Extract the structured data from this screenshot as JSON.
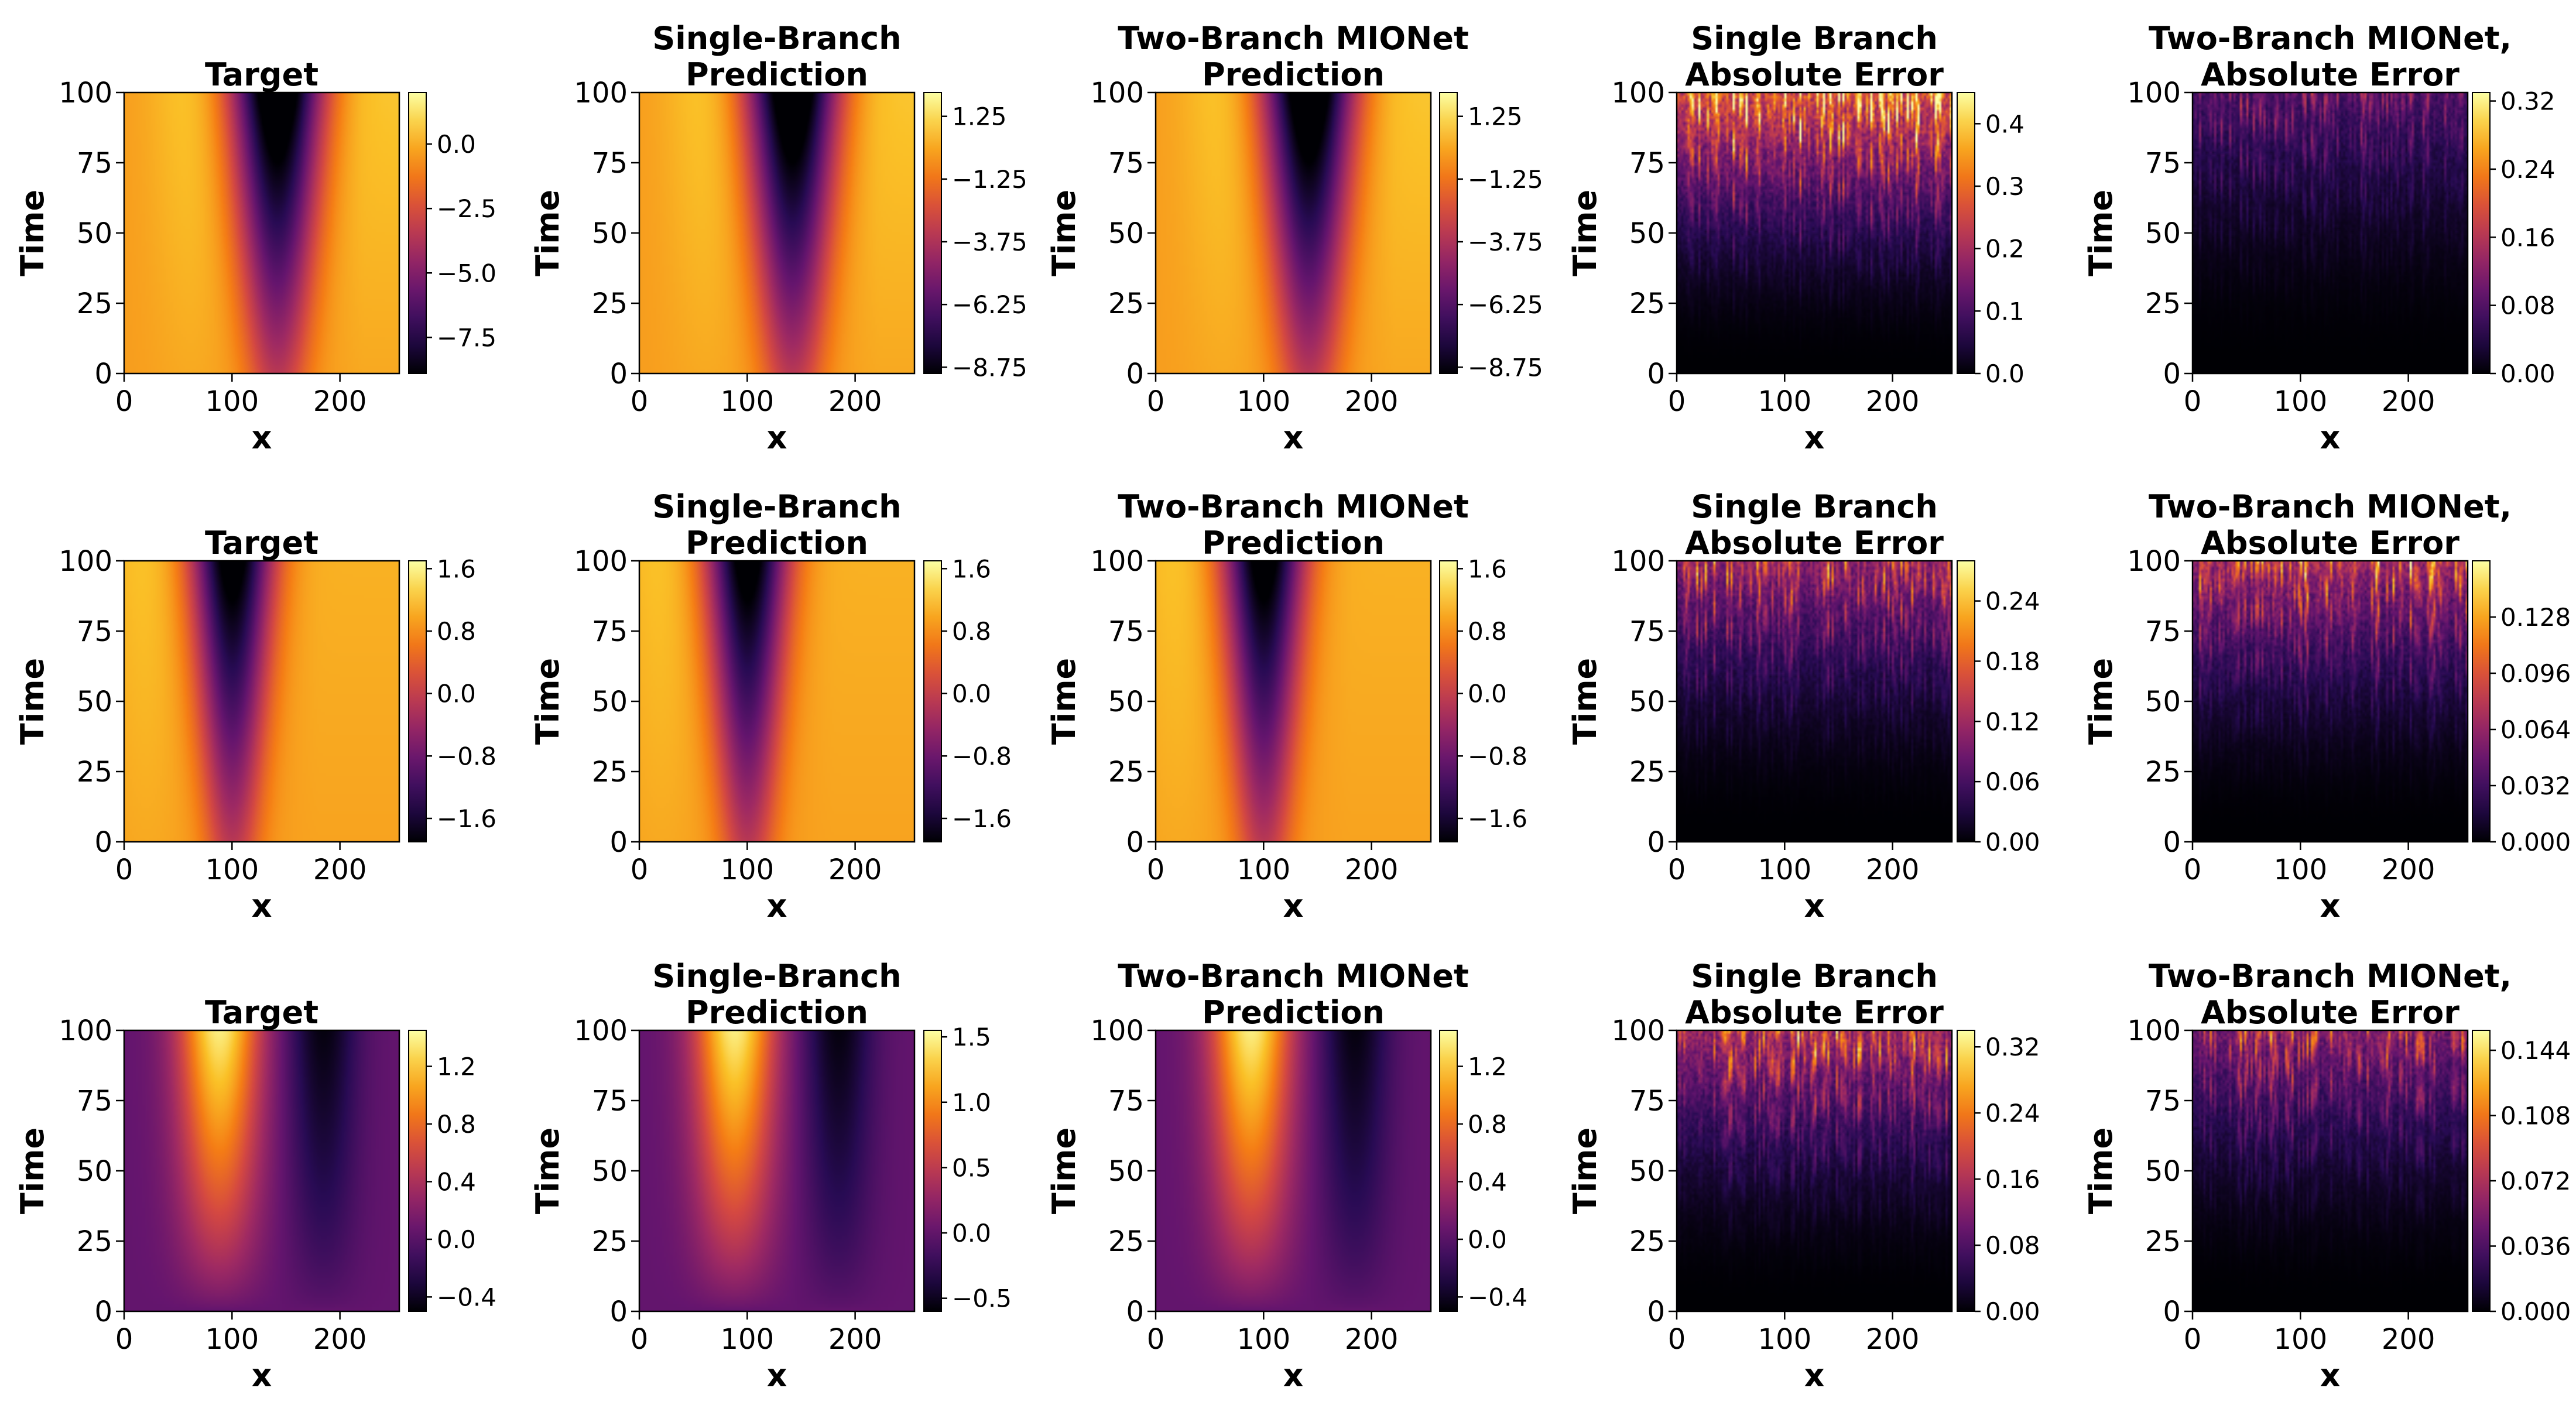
{
  "chart_data": [
    {
      "type": "heatmap",
      "title": "Target",
      "xlabel": "x",
      "ylabel": "Time",
      "x_ticks": [
        "0",
        "100",
        "200"
      ],
      "y_ticks": [
        "0",
        "25",
        "50",
        "75",
        "100"
      ],
      "xlim": [
        0,
        255
      ],
      "ylim": [
        0,
        100
      ],
      "colormap": "inferno",
      "colorbar_range": [
        -8.9,
        2.0
      ],
      "colorbar_ticks": [
        "0.0",
        "−2.5",
        "−5.0",
        "−7.5"
      ],
      "field": {
        "kind": "wave",
        "center": 142,
        "width": 34,
        "growth": 0.8,
        "right": 0.55
      }
    },
    {
      "type": "heatmap",
      "title": "Single-Branch\nPrediction",
      "xlabel": "x",
      "ylabel": "Time",
      "x_ticks": [
        "0",
        "100",
        "200"
      ],
      "y_ticks": [
        "0",
        "25",
        "50",
        "75",
        "100"
      ],
      "xlim": [
        0,
        255
      ],
      "ylim": [
        0,
        100
      ],
      "colormap": "inferno",
      "colorbar_range": [
        -9.0,
        2.2
      ],
      "colorbar_ticks": [
        "1.25",
        "−1.25",
        "−3.75",
        "−6.25",
        "−8.75"
      ],
      "field": {
        "kind": "wave",
        "center": 142,
        "width": 34,
        "growth": 0.8,
        "right": 0.55
      }
    },
    {
      "type": "heatmap",
      "title": "Two-Branch MIONet\nPrediction",
      "xlabel": "x",
      "ylabel": "Time",
      "x_ticks": [
        "0",
        "100",
        "200"
      ],
      "y_ticks": [
        "0",
        "25",
        "50",
        "75",
        "100"
      ],
      "xlim": [
        0,
        255
      ],
      "ylim": [
        0,
        100
      ],
      "colormap": "inferno",
      "colorbar_range": [
        -9.0,
        2.2
      ],
      "colorbar_ticks": [
        "1.25",
        "−1.25",
        "−3.75",
        "−6.25",
        "−8.75"
      ],
      "field": {
        "kind": "wave",
        "center": 142,
        "width": 34,
        "growth": 0.8,
        "right": 0.55
      }
    },
    {
      "type": "heatmap",
      "title": "Single Branch\nAbsolute Error",
      "xlabel": "x",
      "ylabel": "Time",
      "x_ticks": [
        "0",
        "100",
        "200"
      ],
      "y_ticks": [
        "0",
        "25",
        "50",
        "75",
        "100"
      ],
      "xlim": [
        0,
        255
      ],
      "ylim": [
        0,
        100
      ],
      "colormap": "inferno",
      "colorbar_range": [
        0,
        0.45
      ],
      "colorbar_ticks": [
        "0.4",
        "0.3",
        "0.2",
        "0.1",
        "0.0"
      ],
      "field": {
        "kind": "error",
        "level": 0.8,
        "seed": 11
      }
    },
    {
      "type": "heatmap",
      "title": "Two-Branch MIONet,\nAbsolute Error",
      "xlabel": "x",
      "ylabel": "Time",
      "x_ticks": [
        "0",
        "100",
        "200"
      ],
      "y_ticks": [
        "0",
        "25",
        "50",
        "75",
        "100"
      ],
      "xlim": [
        0,
        255
      ],
      "ylim": [
        0,
        100
      ],
      "colormap": "inferno",
      "colorbar_range": [
        0,
        0.33
      ],
      "colorbar_ticks": [
        "0.32",
        "0.24",
        "0.16",
        "0.08",
        "0.00"
      ],
      "field": {
        "kind": "error",
        "level": 0.3,
        "seed": 23
      }
    },
    {
      "type": "heatmap",
      "title": "Target",
      "xlabel": "x",
      "ylabel": "Time",
      "x_ticks": [
        "0",
        "100",
        "200"
      ],
      "y_ticks": [
        "0",
        "25",
        "50",
        "75",
        "100"
      ],
      "xlim": [
        0,
        255
      ],
      "ylim": [
        0,
        100
      ],
      "colormap": "inferno",
      "colorbar_range": [
        -1.9,
        1.7
      ],
      "colorbar_ticks": [
        "1.6",
        "0.8",
        "0.0",
        "−0.8",
        "−1.6"
      ],
      "field": {
        "kind": "wave",
        "center": 100,
        "width": 30,
        "growth": 0.7,
        "right": 0.3
      }
    },
    {
      "type": "heatmap",
      "title": "Single-Branch\nPrediction",
      "xlabel": "x",
      "ylabel": "Time",
      "x_ticks": [
        "0",
        "100",
        "200"
      ],
      "y_ticks": [
        "0",
        "25",
        "50",
        "75",
        "100"
      ],
      "xlim": [
        0,
        255
      ],
      "ylim": [
        0,
        100
      ],
      "colormap": "inferno",
      "colorbar_range": [
        -1.9,
        1.7
      ],
      "colorbar_ticks": [
        "1.6",
        "0.8",
        "0.0",
        "−0.8",
        "−1.6"
      ],
      "field": {
        "kind": "wave",
        "center": 100,
        "width": 30,
        "growth": 0.7,
        "right": 0.3
      }
    },
    {
      "type": "heatmap",
      "title": "Two-Branch MIONet\nPrediction",
      "xlabel": "x",
      "ylabel": "Time",
      "x_ticks": [
        "0",
        "100",
        "200"
      ],
      "y_ticks": [
        "0",
        "25",
        "50",
        "75",
        "100"
      ],
      "xlim": [
        0,
        255
      ],
      "ylim": [
        0,
        100
      ],
      "colormap": "inferno",
      "colorbar_range": [
        -1.9,
        1.7
      ],
      "colorbar_ticks": [
        "1.6",
        "0.8",
        "0.0",
        "−0.8",
        "−1.6"
      ],
      "field": {
        "kind": "wave",
        "center": 100,
        "width": 30,
        "growth": 0.7,
        "right": 0.3
      }
    },
    {
      "type": "heatmap",
      "title": "Single Branch\nAbsolute Error",
      "xlabel": "x",
      "ylabel": "Time",
      "x_ticks": [
        "0",
        "100",
        "200"
      ],
      "y_ticks": [
        "0",
        "25",
        "50",
        "75",
        "100"
      ],
      "xlim": [
        0,
        255
      ],
      "ylim": [
        0,
        100
      ],
      "colormap": "inferno",
      "colorbar_range": [
        0,
        0.28
      ],
      "colorbar_ticks": [
        "0.24",
        "0.18",
        "0.12",
        "0.06",
        "0.00"
      ],
      "field": {
        "kind": "error",
        "level": 0.5,
        "seed": 37
      }
    },
    {
      "type": "heatmap",
      "title": "Two-Branch MIONet,\nAbsolute Error",
      "xlabel": "x",
      "ylabel": "Time",
      "x_ticks": [
        "0",
        "100",
        "200"
      ],
      "y_ticks": [
        "0",
        "25",
        "50",
        "75",
        "100"
      ],
      "xlim": [
        0,
        255
      ],
      "ylim": [
        0,
        100
      ],
      "colormap": "inferno",
      "colorbar_range": [
        0,
        0.16
      ],
      "colorbar_ticks": [
        "0.128",
        "0.096",
        "0.064",
        "0.032",
        "0.000"
      ],
      "field": {
        "kind": "error",
        "level": 0.55,
        "seed": 41
      }
    },
    {
      "type": "heatmap",
      "title": "Target",
      "xlabel": "x",
      "ylabel": "Time",
      "x_ticks": [
        "0",
        "100",
        "200"
      ],
      "y_ticks": [
        "0",
        "25",
        "50",
        "75",
        "100"
      ],
      "xlim": [
        0,
        255
      ],
      "ylim": [
        0,
        100
      ],
      "colormap": "inferno",
      "colorbar_range": [
        -0.5,
        1.45
      ],
      "colorbar_ticks": [
        "1.2",
        "0.8",
        "0.4",
        "0.0",
        "−0.4"
      ],
      "field": {
        "kind": "bump",
        "hot": 88,
        "cold": 185,
        "width": 32
      }
    },
    {
      "type": "heatmap",
      "title": "Single-Branch\nPrediction",
      "xlabel": "x",
      "ylabel": "Time",
      "x_ticks": [
        "0",
        "100",
        "200"
      ],
      "y_ticks": [
        "0",
        "25",
        "50",
        "75",
        "100"
      ],
      "xlim": [
        0,
        255
      ],
      "ylim": [
        0,
        100
      ],
      "colormap": "inferno",
      "colorbar_range": [
        -0.6,
        1.55
      ],
      "colorbar_ticks": [
        "1.5",
        "1.0",
        "0.5",
        "0.0",
        "−0.5"
      ],
      "field": {
        "kind": "bump",
        "hot": 88,
        "cold": 185,
        "width": 32
      }
    },
    {
      "type": "heatmap",
      "title": "Two-Branch MIONet\nPrediction",
      "xlabel": "x",
      "ylabel": "Time",
      "x_ticks": [
        "0",
        "100",
        "200"
      ],
      "y_ticks": [
        "0",
        "25",
        "50",
        "75",
        "100"
      ],
      "xlim": [
        0,
        255
      ],
      "ylim": [
        0,
        100
      ],
      "colormap": "inferno",
      "colorbar_range": [
        -0.5,
        1.45
      ],
      "colorbar_ticks": [
        "1.2",
        "0.8",
        "0.4",
        "0.0",
        "−0.4"
      ],
      "field": {
        "kind": "bump",
        "hot": 88,
        "cold": 185,
        "width": 32
      }
    },
    {
      "type": "heatmap",
      "title": "Single Branch\nAbsolute Error",
      "xlabel": "x",
      "ylabel": "Time",
      "x_ticks": [
        "0",
        "100",
        "200"
      ],
      "y_ticks": [
        "0",
        "25",
        "50",
        "75",
        "100"
      ],
      "xlim": [
        0,
        255
      ],
      "ylim": [
        0,
        100
      ],
      "colormap": "inferno",
      "colorbar_range": [
        0,
        0.34
      ],
      "colorbar_ticks": [
        "0.32",
        "0.24",
        "0.16",
        "0.08",
        "0.00"
      ],
      "field": {
        "kind": "error",
        "level": 0.55,
        "seed": 53
      }
    },
    {
      "type": "heatmap",
      "title": "Two-Branch MIONet,\nAbsolute Error",
      "xlabel": "x",
      "ylabel": "Time",
      "x_ticks": [
        "0",
        "100",
        "200"
      ],
      "y_ticks": [
        "0",
        "25",
        "50",
        "75",
        "100"
      ],
      "xlim": [
        0,
        255
      ],
      "ylim": [
        0,
        100
      ],
      "colormap": "inferno",
      "colorbar_range": [
        0,
        0.155
      ],
      "colorbar_ticks": [
        "0.144",
        "0.108",
        "0.072",
        "0.036",
        "0.000"
      ],
      "field": {
        "kind": "error",
        "level": 0.45,
        "seed": 67
      }
    }
  ]
}
